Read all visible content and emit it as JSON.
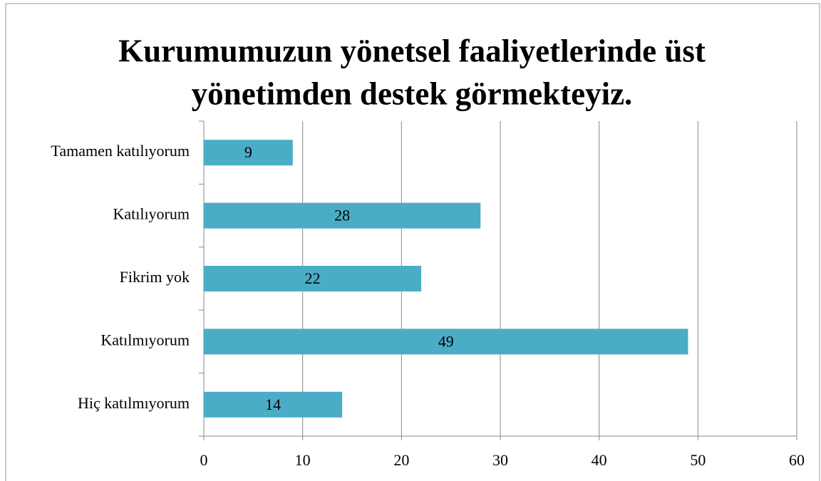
{
  "chart_data": {
    "type": "bar",
    "orientation": "horizontal",
    "title": [
      "Kurumumuzun yönetsel faaliyetlerinde üst",
      "yönetimden  destek görmekteyiz."
    ],
    "categories": [
      "Tamamen katılıyorum",
      "Katılıyorum",
      "Fikrim yok",
      "Katılmıyorum",
      "Hiç katılmıyorum"
    ],
    "values": [
      9,
      28,
      22,
      49,
      14
    ],
    "color": "#4bacc6",
    "xlim": [
      0,
      60
    ],
    "xticks": [
      0,
      10,
      20,
      30,
      40,
      50,
      60
    ],
    "grid": true
  }
}
